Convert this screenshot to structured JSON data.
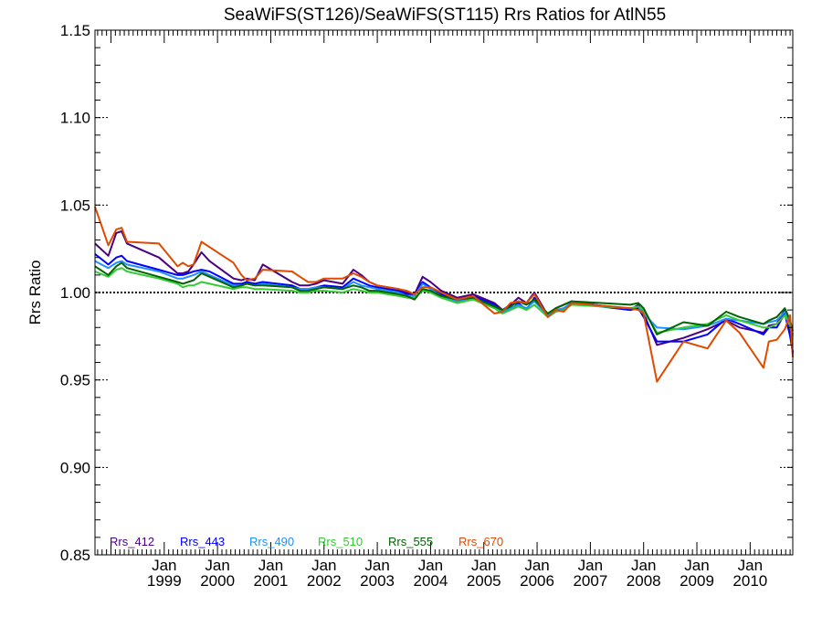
{
  "chart_data": {
    "type": "line",
    "title": "SeaWiFS(ST126)/SeaWiFS(ST115)  Rrs Ratios for AtlN55",
    "ylabel": "Rrs Ratio",
    "xlabel": "",
    "xlim": [
      1997.7,
      2010.8
    ],
    "ylim": [
      0.85,
      1.15
    ],
    "yticks": [
      "1.15",
      "1.10",
      "1.05",
      "1.00",
      "0.95",
      "0.90",
      "0.85"
    ],
    "xticks": [
      {
        "month": "Jan",
        "year": "1999"
      },
      {
        "month": "Jan",
        "year": "2000"
      },
      {
        "month": "Jan",
        "year": "2001"
      },
      {
        "month": "Jan",
        "year": "2002"
      },
      {
        "month": "Jan",
        "year": "2003"
      },
      {
        "month": "Jan",
        "year": "2004"
      },
      {
        "month": "Jan",
        "year": "2005"
      },
      {
        "month": "Jan",
        "year": "2006"
      },
      {
        "month": "Jan",
        "year": "2007"
      },
      {
        "month": "Jan",
        "year": "2008"
      },
      {
        "month": "Jan",
        "year": "2009"
      },
      {
        "month": "Jan",
        "year": "2010"
      }
    ],
    "reference_line": 1.0,
    "legend_position": "bottom-left",
    "x": [
      1997.7,
      1997.95,
      1998.1,
      1998.2,
      1998.3,
      1998.9,
      1999.25,
      1999.35,
      1999.45,
      1999.55,
      1999.7,
      1999.85,
      2000.3,
      2000.45,
      2000.55,
      2000.7,
      2000.85,
      2001.4,
      2001.55,
      2001.7,
      2001.85,
      2002.0,
      2002.35,
      2002.55,
      2002.7,
      2002.85,
      2003.0,
      2003.4,
      2003.55,
      2003.7,
      2003.85,
      2004.0,
      2004.2,
      2004.5,
      2004.8,
      2005.2,
      2005.35,
      2005.5,
      2005.65,
      2005.8,
      2005.95,
      2006.2,
      2006.35,
      2006.5,
      2006.65,
      2007.75,
      2007.9,
      2008.0,
      2008.25,
      2008.75,
      2009.2,
      2009.55,
      2009.8,
      2010.25,
      2010.35,
      2010.5,
      2010.65,
      2010.75,
      2010.8
    ],
    "series": [
      {
        "name": "Rrs_412",
        "color": "#4b0082",
        "values": [
          1.028,
          1.021,
          1.034,
          1.035,
          1.028,
          1.02,
          1.011,
          1.011,
          1.012,
          1.016,
          1.023,
          1.018,
          1.008,
          1.007,
          1.008,
          1.007,
          1.016,
          1.006,
          1.004,
          1.004,
          1.005,
          1.007,
          1.005,
          1.013,
          1.01,
          1.006,
          1.004,
          1.002,
          1.0,
          0.999,
          1.009,
          1.006,
          1.001,
          0.997,
          0.999,
          0.994,
          0.99,
          0.993,
          0.997,
          0.994,
          1.0,
          0.987,
          0.991,
          0.993,
          0.995,
          0.99,
          0.993,
          0.988,
          0.97,
          0.974,
          0.979,
          0.984,
          0.98,
          0.977,
          0.981,
          0.982,
          0.99,
          0.98,
          0.965
        ]
      },
      {
        "name": "Rrs_443",
        "color": "#0000ff",
        "values": [
          1.022,
          1.016,
          1.02,
          1.021,
          1.018,
          1.013,
          1.01,
          1.01,
          1.011,
          1.012,
          1.013,
          1.012,
          1.005,
          1.005,
          1.006,
          1.005,
          1.006,
          1.004,
          1.002,
          1.002,
          1.003,
          1.004,
          1.003,
          1.008,
          1.006,
          1.004,
          1.003,
          1.001,
          0.999,
          0.999,
          1.006,
          1.003,
          0.999,
          0.996,
          0.998,
          0.993,
          0.989,
          0.99,
          0.994,
          0.99,
          0.997,
          0.986,
          0.989,
          0.991,
          0.994,
          0.99,
          0.991,
          0.986,
          0.972,
          0.972,
          0.976,
          0.985,
          0.982,
          0.976,
          0.98,
          0.98,
          0.988,
          0.975,
          0.966
        ]
      },
      {
        "name": "Rrs_490",
        "color": "#1e90ff",
        "values": [
          1.018,
          1.014,
          1.017,
          1.018,
          1.016,
          1.012,
          1.008,
          1.008,
          1.009,
          1.01,
          1.012,
          1.01,
          1.004,
          1.004,
          1.005,
          1.004,
          1.005,
          1.003,
          1.002,
          1.002,
          1.003,
          1.003,
          1.002,
          1.006,
          1.004,
          1.003,
          1.002,
          1.0,
          0.998,
          0.998,
          1.005,
          1.002,
          0.998,
          0.995,
          0.997,
          0.992,
          0.989,
          0.991,
          0.993,
          0.991,
          0.995,
          0.987,
          0.99,
          0.991,
          0.994,
          0.991,
          0.992,
          0.988,
          0.98,
          0.979,
          0.981,
          0.985,
          0.984,
          0.982,
          0.983,
          0.984,
          0.989,
          0.983,
          0.976
        ]
      },
      {
        "name": "Rrs_510",
        "color": "#33cc33",
        "values": [
          1.012,
          1.009,
          1.013,
          1.014,
          1.012,
          1.008,
          1.005,
          1.003,
          1.004,
          1.004,
          1.006,
          1.005,
          1.002,
          1.003,
          1.003,
          1.002,
          1.002,
          1.001,
          1.0,
          1.0,
          1.001,
          1.001,
          1.0,
          1.002,
          1.001,
          1.0,
          1.0,
          0.998,
          0.997,
          0.997,
          1.001,
          1.0,
          0.997,
          0.994,
          0.996,
          0.991,
          0.988,
          0.99,
          0.992,
          0.99,
          0.993,
          0.986,
          0.989,
          0.99,
          0.993,
          0.991,
          0.992,
          0.99,
          0.977,
          0.98,
          0.982,
          0.987,
          0.984,
          0.98,
          0.98,
          0.982,
          0.987,
          0.981,
          0.975
        ]
      },
      {
        "name": "Rrs_555",
        "color": "#006400",
        "values": [
          1.015,
          1.01,
          1.015,
          1.017,
          1.014,
          1.009,
          1.006,
          1.005,
          1.006,
          1.007,
          1.011,
          1.009,
          1.003,
          1.004,
          1.005,
          1.004,
          1.004,
          1.003,
          1.001,
          1.001,
          1.002,
          1.003,
          1.002,
          1.004,
          1.003,
          1.001,
          1.001,
          0.999,
          0.998,
          0.996,
          1.002,
          1.001,
          0.998,
          0.996,
          0.997,
          0.992,
          0.99,
          0.992,
          0.995,
          0.993,
          0.996,
          0.988,
          0.991,
          0.993,
          0.995,
          0.993,
          0.994,
          0.991,
          0.976,
          0.983,
          0.981,
          0.989,
          0.986,
          0.982,
          0.984,
          0.986,
          0.991,
          0.984,
          0.978
        ]
      },
      {
        "name": "Rrs_670",
        "color": "#e04a00",
        "values": [
          1.049,
          1.027,
          1.036,
          1.037,
          1.029,
          1.028,
          1.015,
          1.017,
          1.015,
          1.016,
          1.029,
          1.026,
          1.017,
          1.01,
          1.007,
          1.008,
          1.013,
          1.012,
          1.009,
          1.006,
          1.006,
          1.008,
          1.008,
          1.011,
          1.009,
          1.006,
          1.004,
          1.002,
          1.001,
          0.999,
          1.003,
          1.003,
          1.0,
          0.996,
          0.998,
          0.988,
          0.989,
          0.994,
          0.995,
          0.994,
          0.999,
          0.986,
          0.99,
          0.989,
          0.994,
          0.991,
          0.99,
          0.988,
          0.949,
          0.972,
          0.968,
          0.984,
          0.977,
          0.957,
          0.972,
          0.973,
          0.979,
          0.987,
          0.963
        ]
      }
    ]
  }
}
